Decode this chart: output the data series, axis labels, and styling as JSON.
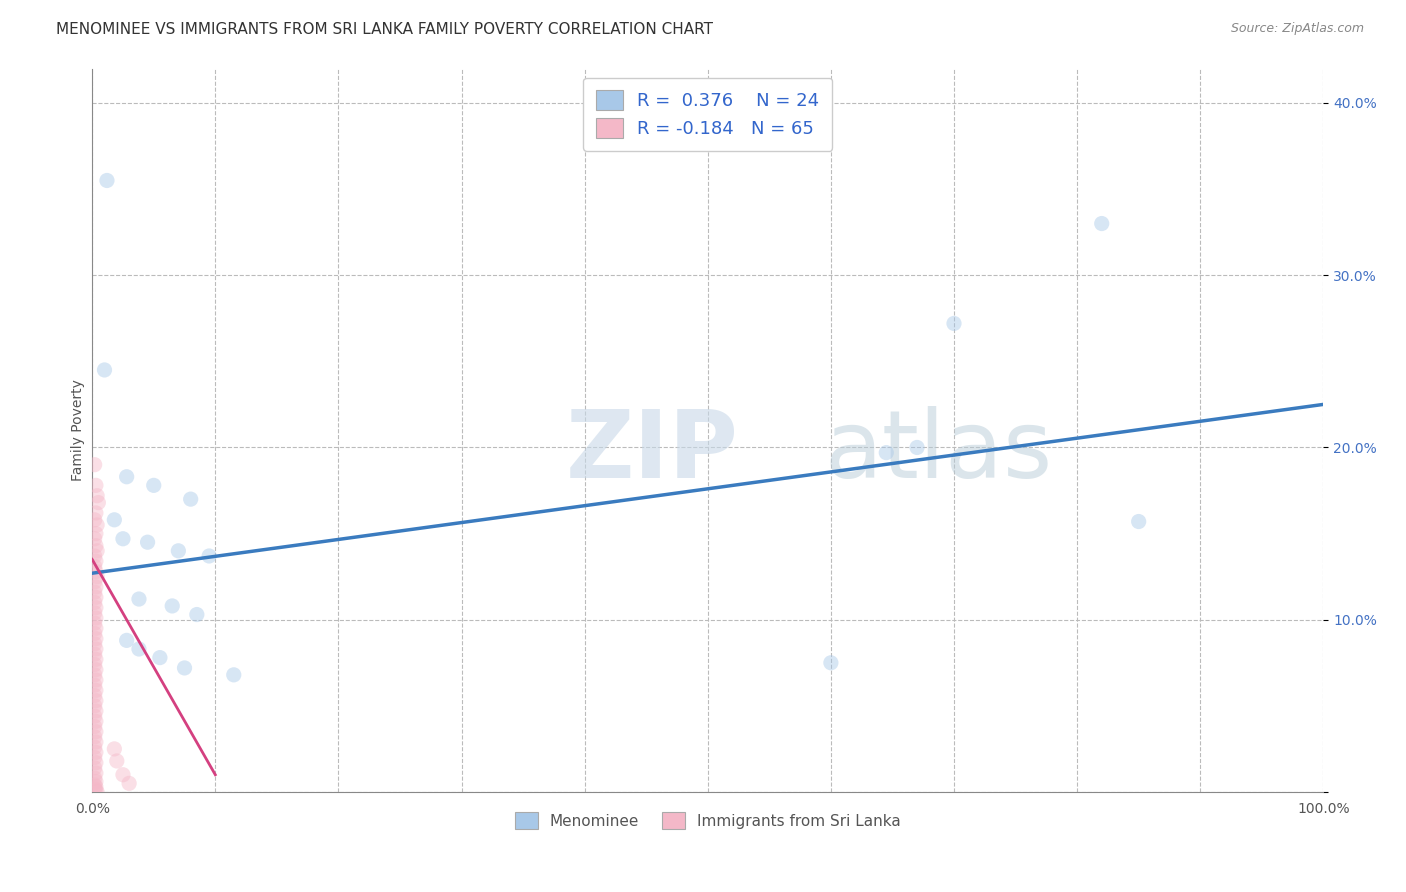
{
  "title": "MENOMINEE VS IMMIGRANTS FROM SRI LANKA FAMILY POVERTY CORRELATION CHART",
  "source": "Source: ZipAtlas.com",
  "ylabel": "Family Poverty",
  "watermark_zip": "ZIP",
  "watermark_atlas": "atlas",
  "blue_R": 0.376,
  "blue_N": 24,
  "pink_R": -0.184,
  "pink_N": 65,
  "blue_color": "#a8c8e8",
  "pink_color": "#f4b8c8",
  "blue_line_color": "#3a7bbf",
  "pink_line_color": "#d44080",
  "blue_points": [
    [
      0.012,
      0.355
    ],
    [
      0.82,
      0.33
    ],
    [
      0.7,
      0.272
    ],
    [
      0.01,
      0.245
    ],
    [
      0.028,
      0.183
    ],
    [
      0.05,
      0.178
    ],
    [
      0.08,
      0.17
    ],
    [
      0.018,
      0.158
    ],
    [
      0.025,
      0.147
    ],
    [
      0.045,
      0.145
    ],
    [
      0.07,
      0.14
    ],
    [
      0.095,
      0.137
    ],
    [
      0.645,
      0.197
    ],
    [
      0.67,
      0.2
    ],
    [
      0.85,
      0.157
    ],
    [
      0.6,
      0.075
    ],
    [
      0.038,
      0.112
    ],
    [
      0.065,
      0.108
    ],
    [
      0.085,
      0.103
    ],
    [
      0.115,
      0.068
    ],
    [
      0.028,
      0.088
    ],
    [
      0.038,
      0.083
    ],
    [
      0.055,
      0.078
    ],
    [
      0.075,
      0.072
    ]
  ],
  "pink_points": [
    [
      0.002,
      0.19
    ],
    [
      0.003,
      0.178
    ],
    [
      0.004,
      0.172
    ],
    [
      0.005,
      0.168
    ],
    [
      0.003,
      0.162
    ],
    [
      0.002,
      0.158
    ],
    [
      0.004,
      0.155
    ],
    [
      0.003,
      0.15
    ],
    [
      0.002,
      0.147
    ],
    [
      0.003,
      0.143
    ],
    [
      0.004,
      0.14
    ],
    [
      0.002,
      0.137
    ],
    [
      0.003,
      0.134
    ],
    [
      0.002,
      0.131
    ],
    [
      0.003,
      0.128
    ],
    [
      0.004,
      0.125
    ],
    [
      0.002,
      0.122
    ],
    [
      0.003,
      0.119
    ],
    [
      0.002,
      0.116
    ],
    [
      0.003,
      0.113
    ],
    [
      0.002,
      0.11
    ],
    [
      0.003,
      0.107
    ],
    [
      0.002,
      0.104
    ],
    [
      0.003,
      0.101
    ],
    [
      0.002,
      0.098
    ],
    [
      0.003,
      0.095
    ],
    [
      0.002,
      0.092
    ],
    [
      0.003,
      0.089
    ],
    [
      0.002,
      0.086
    ],
    [
      0.003,
      0.083
    ],
    [
      0.002,
      0.08
    ],
    [
      0.003,
      0.077
    ],
    [
      0.002,
      0.074
    ],
    [
      0.003,
      0.071
    ],
    [
      0.002,
      0.068
    ],
    [
      0.003,
      0.065
    ],
    [
      0.002,
      0.062
    ],
    [
      0.003,
      0.059
    ],
    [
      0.002,
      0.056
    ],
    [
      0.003,
      0.053
    ],
    [
      0.002,
      0.05
    ],
    [
      0.003,
      0.047
    ],
    [
      0.002,
      0.044
    ],
    [
      0.003,
      0.041
    ],
    [
      0.002,
      0.038
    ],
    [
      0.003,
      0.035
    ],
    [
      0.002,
      0.032
    ],
    [
      0.003,
      0.029
    ],
    [
      0.002,
      0.026
    ],
    [
      0.003,
      0.023
    ],
    [
      0.002,
      0.02
    ],
    [
      0.003,
      0.017
    ],
    [
      0.002,
      0.014
    ],
    [
      0.003,
      0.011
    ],
    [
      0.002,
      0.008
    ],
    [
      0.003,
      0.006
    ],
    [
      0.002,
      0.004
    ],
    [
      0.003,
      0.003
    ],
    [
      0.002,
      0.002
    ],
    [
      0.003,
      0.001
    ],
    [
      0.004,
      0.0
    ],
    [
      0.018,
      0.025
    ],
    [
      0.02,
      0.018
    ],
    [
      0.025,
      0.01
    ],
    [
      0.03,
      0.005
    ]
  ],
  "xlim": [
    0.0,
    1.0
  ],
  "ylim": [
    0.0,
    0.42
  ],
  "xticks": [
    0.0,
    0.1,
    0.2,
    0.3,
    0.4,
    0.5,
    0.6,
    0.7,
    0.8,
    0.9,
    1.0
  ],
  "yticks": [
    0.0,
    0.1,
    0.2,
    0.3,
    0.4
  ],
  "xticklabels": [
    "0.0%",
    "",
    "",
    "",
    "",
    "",
    "",
    "",
    "",
    "",
    "100.0%"
  ],
  "yticklabels": [
    "",
    "10.0%",
    "20.0%",
    "30.0%",
    "40.0%"
  ],
  "grid_color": "#bbbbbb",
  "background_color": "#ffffff",
  "title_fontsize": 11,
  "axis_label_fontsize": 10,
  "tick_fontsize": 10,
  "marker_size": 120,
  "marker_alpha": 0.45,
  "blue_line_x0": 0.0,
  "blue_line_x1": 1.0,
  "blue_line_y0": 0.127,
  "blue_line_y1": 0.225,
  "pink_line_x0": 0.0,
  "pink_line_x1": 0.1,
  "pink_line_y0": 0.135,
  "pink_line_y1": 0.01
}
